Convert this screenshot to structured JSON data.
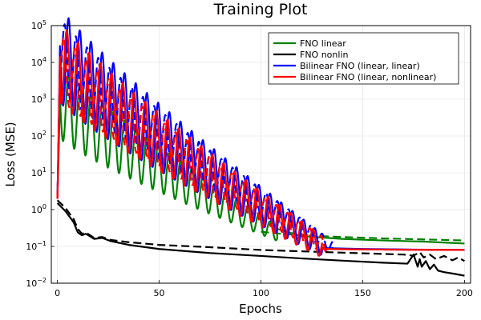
{
  "chart_data": {
    "type": "line",
    "title": "Training Plot",
    "xlabel": "Epochs",
    "ylabel": "Loss (MSE)",
    "xlim": [
      -3,
      203
    ],
    "x_ticks": [
      0,
      50,
      100,
      150,
      200
    ],
    "x_tick_labels": [
      "0",
      "50",
      "100",
      "150",
      "200"
    ],
    "yscale": "log",
    "ylim": [
      0.01,
      100000
    ],
    "y_ticks": [
      0.01,
      0.1,
      1,
      10,
      100,
      1000,
      10000,
      100000
    ],
    "y_tick_labels": [
      {
        "base": "10",
        "exp": "−2"
      },
      {
        "base": "10",
        "exp": "−1"
      },
      {
        "base": "10",
        "exp": "0"
      },
      {
        "base": "10",
        "exp": "1"
      },
      {
        "base": "10",
        "exp": "2"
      },
      {
        "base": "10",
        "exp": "3"
      },
      {
        "base": "10",
        "exp": "4"
      },
      {
        "base": "10",
        "exp": "5"
      }
    ],
    "grid": true,
    "legend_position": "top-right",
    "series": [
      {
        "name": "FNO linear",
        "color": "#008000",
        "legend": true,
        "style": "solid",
        "oscillation": {
          "start_log": 3.0,
          "end_log": -0.65,
          "end_epoch": 108,
          "period": 5.5,
          "amp_start": 1.0,
          "amp_end": 0.2
        },
        "points": [
          [
            108,
            0.3
          ],
          [
            120,
            0.19
          ],
          [
            140,
            0.16
          ],
          [
            160,
            0.145
          ],
          [
            180,
            0.135
          ],
          [
            200,
            0.12
          ]
        ]
      },
      {
        "name": "FNO linear (val)",
        "color": "#008000",
        "legend": false,
        "style": "dashed",
        "points": [
          [
            100,
            0.25
          ],
          [
            110,
            0.22
          ],
          [
            120,
            0.2
          ],
          [
            140,
            0.18
          ],
          [
            160,
            0.165
          ],
          [
            180,
            0.155
          ],
          [
            200,
            0.145
          ]
        ]
      },
      {
        "name": "FNO nonlin",
        "color": "#000000",
        "legend": true,
        "style": "solid",
        "points": [
          [
            0,
            1.5
          ],
          [
            4,
            0.9
          ],
          [
            8,
            0.45
          ],
          [
            10,
            0.24
          ],
          [
            12,
            0.2
          ],
          [
            14,
            0.22
          ],
          [
            18,
            0.16
          ],
          [
            22,
            0.17
          ],
          [
            26,
            0.14
          ],
          [
            35,
            0.11
          ],
          [
            50,
            0.085
          ],
          [
            75,
            0.066
          ],
          [
            100,
            0.055
          ],
          [
            120,
            0.047
          ],
          [
            140,
            0.041
          ],
          [
            160,
            0.036
          ],
          [
            172,
            0.034
          ],
          [
            175,
            0.06
          ],
          [
            177,
            0.028
          ],
          [
            178,
            0.045
          ],
          [
            179,
            0.028
          ],
          [
            181,
            0.04
          ],
          [
            183,
            0.024
          ],
          [
            185,
            0.032
          ],
          [
            187,
            0.022
          ],
          [
            190,
            0.02
          ],
          [
            195,
            0.018
          ],
          [
            200,
            0.016
          ]
        ]
      },
      {
        "name": "FNO nonlin (val)",
        "color": "#000000",
        "legend": false,
        "style": "dashed",
        "points": [
          [
            0,
            1.8
          ],
          [
            4,
            1.1
          ],
          [
            8,
            0.55
          ],
          [
            10,
            0.3
          ],
          [
            12,
            0.22
          ],
          [
            14,
            0.24
          ],
          [
            18,
            0.17
          ],
          [
            22,
            0.18
          ],
          [
            26,
            0.15
          ],
          [
            35,
            0.13
          ],
          [
            50,
            0.11
          ],
          [
            75,
            0.095
          ],
          [
            100,
            0.08
          ],
          [
            125,
            0.072
          ],
          [
            150,
            0.065
          ],
          [
            170,
            0.06
          ],
          [
            175,
            0.056
          ],
          [
            178,
            0.07
          ],
          [
            180,
            0.05
          ],
          [
            183,
            0.06
          ],
          [
            186,
            0.045
          ],
          [
            190,
            0.055
          ],
          [
            194,
            0.042
          ],
          [
            197,
            0.05
          ],
          [
            200,
            0.04
          ]
        ]
      },
      {
        "name": "Bilinear FNO (linear, linear)",
        "color": "#0000ff",
        "legend": true,
        "style": "solid",
        "oscillation": {
          "start_log": 4.3,
          "end_log": -0.95,
          "end_epoch": 130,
          "period": 5.5,
          "amp_start": 1.3,
          "amp_end": 0.3
        },
        "points": [
          [
            130,
            0.09
          ],
          [
            150,
            0.085
          ],
          [
            175,
            0.082
          ],
          [
            200,
            0.08
          ]
        ]
      },
      {
        "name": "Bilinear FNO (linear, linear) (val)",
        "color": "#0000ff",
        "legend": false,
        "style": "dashed",
        "oscillation": {
          "start_log": 4.3,
          "end_log": -1.0,
          "end_epoch": 135,
          "period": 5.5,
          "amp_start": 1.0,
          "amp_end": 0.15,
          "phase": 2.2
        },
        "points": [
          [
            135,
            0.085
          ],
          [
            160,
            0.082
          ],
          [
            200,
            0.08
          ]
        ]
      },
      {
        "name": "Bilinear FNO (linear, nonlinear)",
        "color": "#ff0000",
        "legend": true,
        "style": "solid",
        "oscillation": {
          "start_log": 4.1,
          "end_log": -1.0,
          "end_epoch": 130,
          "period": 5.5,
          "amp_start": 1.1,
          "amp_end": 0.3,
          "phase": 1.0
        },
        "points": [
          [
            130,
            0.085
          ],
          [
            160,
            0.082
          ],
          [
            200,
            0.08
          ]
        ]
      },
      {
        "name": "Bilinear FNO (linear, nonlinear) (val)",
        "color": "#ff0000",
        "legend": false,
        "style": "dashed",
        "oscillation": {
          "start_log": 4.0,
          "end_log": -1.0,
          "end_epoch": 132,
          "period": 5.5,
          "amp_start": 0.9,
          "amp_end": 0.2,
          "phase": 2.8
        },
        "points": [
          [
            132,
            0.085
          ],
          [
            160,
            0.082
          ],
          [
            200,
            0.08
          ]
        ]
      }
    ]
  }
}
